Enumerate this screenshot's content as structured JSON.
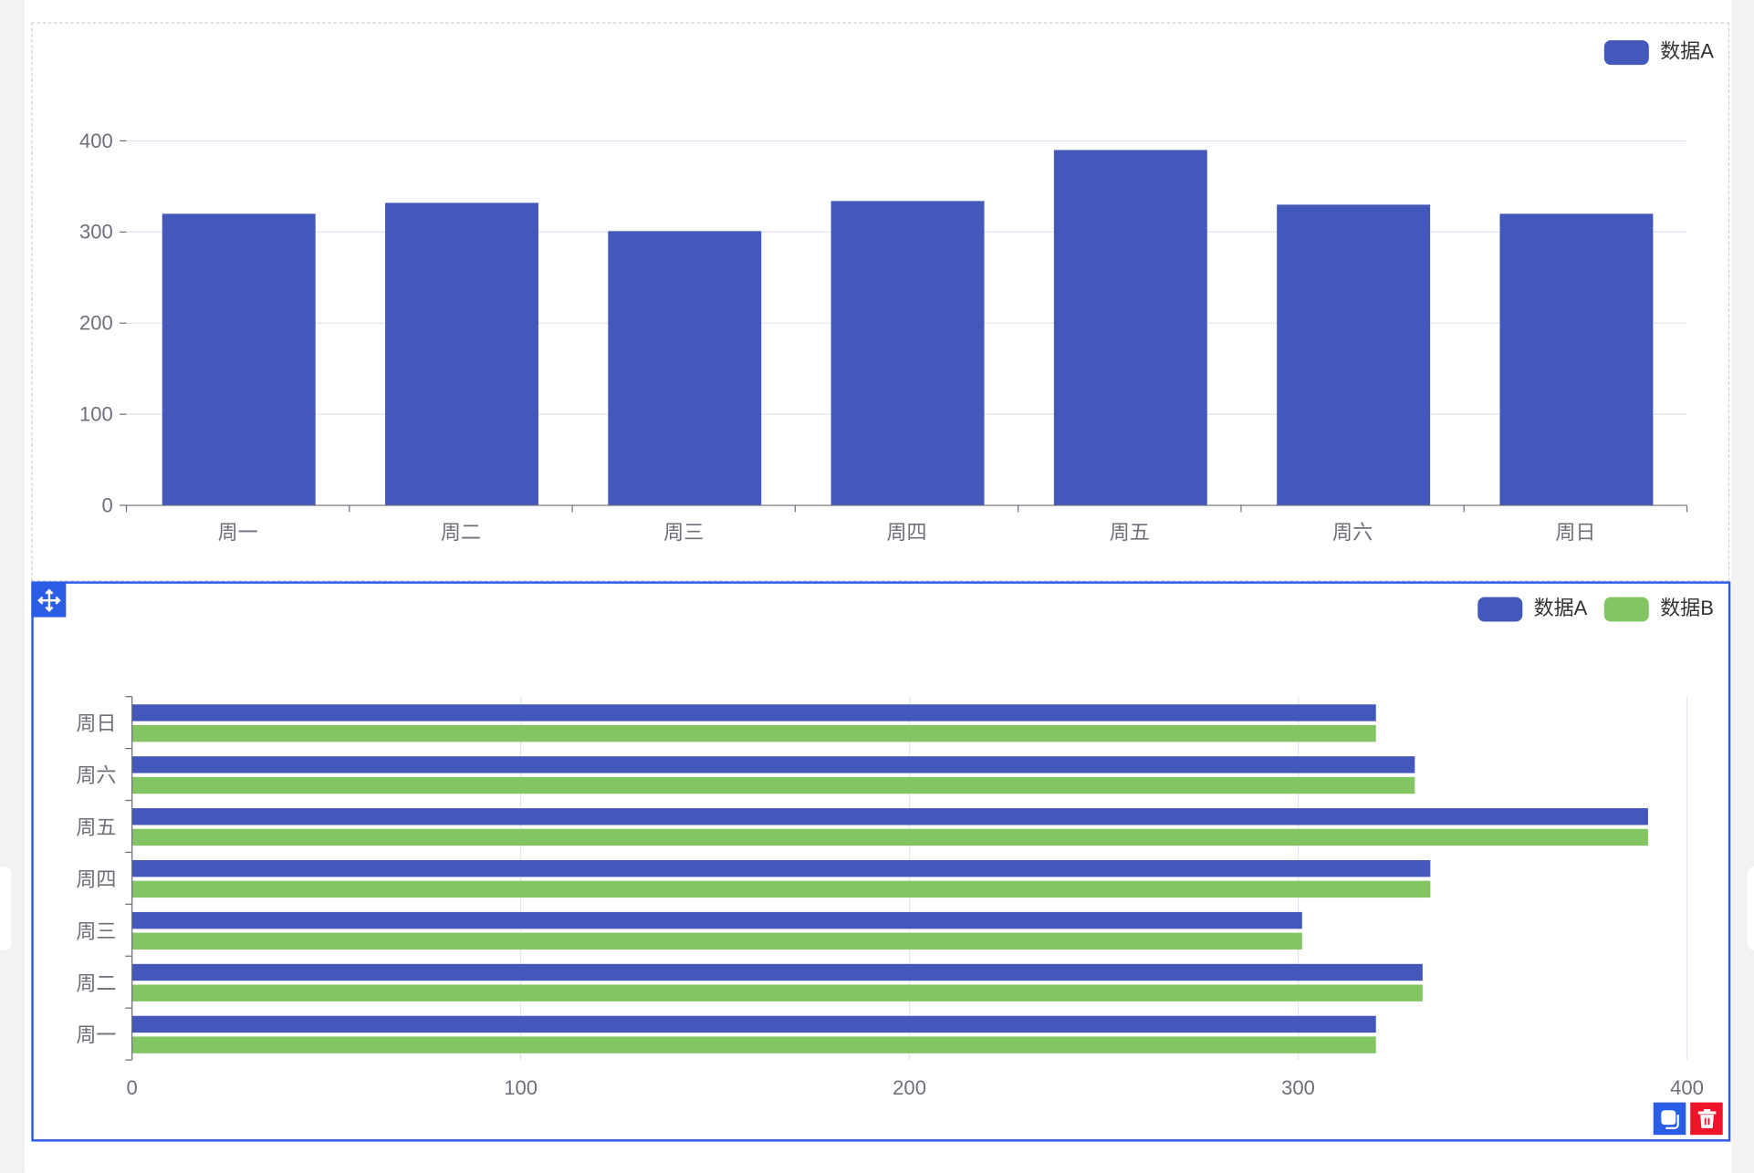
{
  "colors": {
    "A": "#4457ba",
    "B": "#84c563",
    "selection": "#2a5ce6",
    "delete": "#f0142b"
  },
  "toolbar": {
    "move_icon": "move-icon",
    "copy_icon": "copy-icon",
    "delete_icon": "trash-icon"
  },
  "chart_data": [
    {
      "type": "bar",
      "orientation": "vertical",
      "categories": [
        "周一",
        "周二",
        "周三",
        "周四",
        "周五",
        "周六",
        "周日"
      ],
      "series": [
        {
          "name": "数据A",
          "values": [
            320,
            332,
            301,
            334,
            390,
            330,
            320
          ]
        }
      ],
      "yticks": [
        "0",
        "100",
        "200",
        "300",
        "400"
      ],
      "ylim": [
        0,
        400
      ],
      "grid": true,
      "legend": "top-right"
    },
    {
      "type": "bar",
      "orientation": "horizontal",
      "categories": [
        "周一",
        "周二",
        "周三",
        "周四",
        "周五",
        "周六",
        "周日"
      ],
      "series": [
        {
          "name": "数据A",
          "values": [
            320,
            332,
            301,
            334,
            390,
            330,
            320
          ]
        },
        {
          "name": "数据B",
          "values": [
            320,
            332,
            301,
            334,
            390,
            330,
            320
          ]
        }
      ],
      "xticks": [
        "0",
        "100",
        "200",
        "300",
        "400"
      ],
      "xlim": [
        0,
        400
      ],
      "grid": true,
      "legend": "top-right"
    }
  ]
}
